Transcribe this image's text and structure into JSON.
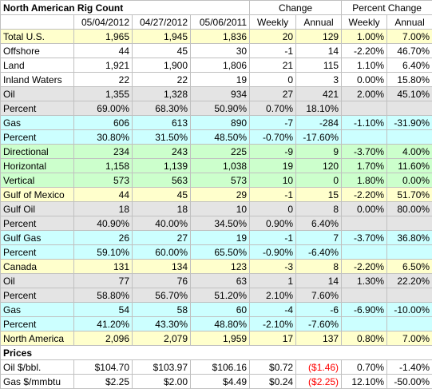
{
  "header": {
    "title": "North American Rig Count",
    "groups": [
      "Change",
      "Percent Change"
    ],
    "columns": [
      "05/04/2012",
      "04/27/2012",
      "05/06/2011",
      "Weekly",
      "Annual",
      "Weekly",
      "Annual"
    ]
  },
  "table": {
    "rows": [
      {
        "color": "#ffffcc",
        "cells": [
          "Total U.S.",
          "1,965",
          "1,945",
          "1,836",
          "20",
          "129",
          "1.00%",
          "7.00%"
        ]
      },
      {
        "color": "#ffffff",
        "cells": [
          "Offshore",
          "44",
          "45",
          "30",
          "-1",
          "14",
          "-2.20%",
          "46.70%"
        ]
      },
      {
        "color": "#ffffff",
        "cells": [
          "Land",
          "1,921",
          "1,900",
          "1,806",
          "21",
          "115",
          "1.10%",
          "6.40%"
        ]
      },
      {
        "color": "#ffffff",
        "cells": [
          "Inland Waters",
          "22",
          "22",
          "19",
          "0",
          "3",
          "0.00%",
          "15.80%"
        ]
      },
      {
        "color": "#e4e4e4",
        "cells": [
          "Oil",
          "1,355",
          "1,328",
          "934",
          "27",
          "421",
          "2.00%",
          "45.10%"
        ]
      },
      {
        "color": "#e4e4e4",
        "cells": [
          "Percent",
          "69.00%",
          "68.30%",
          "50.90%",
          "0.70%",
          "18.10%"
        ]
      },
      {
        "color": "#ccffff",
        "cells": [
          "Gas",
          "606",
          "613",
          "890",
          "-7",
          "-284",
          "-1.10%",
          "-31.90%"
        ]
      },
      {
        "color": "#ccffff",
        "cells": [
          "Percent",
          "30.80%",
          "31.50%",
          "48.50%",
          "-0.70%",
          "-17.60%"
        ]
      },
      {
        "color": "#ccffcc",
        "cells": [
          "Directional",
          "234",
          "243",
          "225",
          "-9",
          "9",
          "-3.70%",
          "4.00%"
        ]
      },
      {
        "color": "#ccffcc",
        "cells": [
          "Horizontal",
          "1,158",
          "1,139",
          "1,038",
          "19",
          "120",
          "1.70%",
          "11.60%"
        ]
      },
      {
        "color": "#ccffcc",
        "cells": [
          "Vertical",
          "573",
          "563",
          "573",
          "10",
          "0",
          "1.80%",
          "0.00%"
        ]
      },
      {
        "color": "#ffffcc",
        "cells": [
          "Gulf of Mexico",
          "44",
          "45",
          "29",
          "-1",
          "15",
          "-2.20%",
          "51.70%"
        ]
      },
      {
        "color": "#e4e4e4",
        "cells": [
          "Gulf Oil",
          "18",
          "18",
          "10",
          "0",
          "8",
          "0.00%",
          "80.00%"
        ]
      },
      {
        "color": "#e4e4e4",
        "cells": [
          "Percent",
          "40.90%",
          "40.00%",
          "34.50%",
          "0.90%",
          "6.40%"
        ]
      },
      {
        "color": "#ccffff",
        "cells": [
          "Gulf Gas",
          "26",
          "27",
          "19",
          "-1",
          "7",
          "-3.70%",
          "36.80%"
        ]
      },
      {
        "color": "#ccffff",
        "cells": [
          "Percent",
          "59.10%",
          "60.00%",
          "65.50%",
          "-0.90%",
          "-6.40%"
        ]
      },
      {
        "color": "#ffffcc",
        "cells": [
          "Canada",
          "131",
          "134",
          "123",
          "-3",
          "8",
          "-2.20%",
          "6.50%"
        ]
      },
      {
        "color": "#e4e4e4",
        "cells": [
          "Oil",
          "77",
          "76",
          "63",
          "1",
          "14",
          "1.30%",
          "22.20%"
        ]
      },
      {
        "color": "#e4e4e4",
        "cells": [
          "Percent",
          "58.80%",
          "56.70%",
          "51.20%",
          "2.10%",
          "7.60%"
        ]
      },
      {
        "color": "#ccffff",
        "cells": [
          "Gas",
          "54",
          "58",
          "60",
          "-4",
          "-6",
          "-6.90%",
          "-10.00%"
        ]
      },
      {
        "color": "#ccffff",
        "cells": [
          "Percent",
          "41.20%",
          "43.30%",
          "48.80%",
          "-2.10%",
          "-7.60%"
        ]
      },
      {
        "color": "#ffffcc",
        "cells": [
          "North America",
          "2,096",
          "2,079",
          "1,959",
          "17",
          "137",
          "0.80%",
          "7.00%"
        ]
      }
    ]
  },
  "prices": {
    "title": "Prices",
    "rows": [
      {
        "color": "#ffffff",
        "red": [
          5
        ],
        "cells": [
          "Oil $/bbl.",
          "$104.70",
          "$103.97",
          "$106.16",
          "$0.72",
          "($1.46)",
          "0.70%",
          "-1.40%"
        ]
      },
      {
        "color": "#ffffff",
        "red": [
          5
        ],
        "cells": [
          "Gas $/mmbtu",
          "$2.25",
          "$2.00",
          "$4.49",
          "$0.24",
          "($2.25)",
          "12.10%",
          "-50.00%"
        ]
      }
    ]
  }
}
